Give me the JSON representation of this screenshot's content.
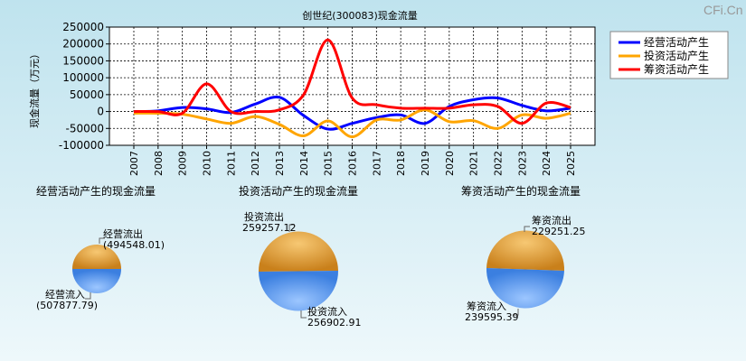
{
  "watermark": "CFi.Cn",
  "chart_data": [
    {
      "type": "line",
      "title": "创世纪(300083)现金流量",
      "ylabel": "现金流量（万元）",
      "xlabel": "",
      "x": [
        "2007",
        "2008",
        "2009",
        "2010",
        "2011",
        "2012",
        "2013",
        "2014",
        "2015",
        "2016",
        "2017",
        "2018",
        "2019",
        "2020",
        "2021",
        "2022",
        "2023",
        "2024",
        "2025"
      ],
      "ylim": [
        -100000,
        250000
      ],
      "yticks": [
        "250000",
        "200000",
        "150000",
        "100000",
        "50000",
        "0",
        "-50000",
        "-100000"
      ],
      "grid": true,
      "legend_position": "top-right",
      "series": [
        {
          "name": "经营活动产生",
          "color": "#0000ff",
          "values": [
            0,
            2000,
            12000,
            8000,
            -3000,
            22000,
            42000,
            -12000,
            -52000,
            -35000,
            -18000,
            -10000,
            -35000,
            15000,
            35000,
            40000,
            18000,
            2000,
            10000
          ]
        },
        {
          "name": "投资活动产生",
          "color": "#ffa500",
          "values": [
            -5000,
            -5000,
            -8000,
            -22000,
            -35000,
            -15000,
            -38000,
            -72000,
            -28000,
            -75000,
            -25000,
            -25000,
            5000,
            -30000,
            -27000,
            -50000,
            -10000,
            -20000,
            -5000
          ]
        },
        {
          "name": "筹资活动产生",
          "color": "#ff0000",
          "values": [
            0,
            0,
            -5000,
            82000,
            0,
            0,
            5000,
            50000,
            212000,
            40000,
            20000,
            10000,
            10000,
            10000,
            20000,
            15000,
            -35000,
            25000,
            12000
          ]
        }
      ]
    },
    {
      "type": "pie",
      "title": "经营活动产生的现金流量",
      "labels": [
        "经营流出",
        "经营流入"
      ],
      "values": [
        494548.01,
        507877.79
      ],
      "value_labels": [
        "(494548.01)",
        "(507877.79)"
      ],
      "colors": [
        "#e6a23c",
        "#5b9bf0"
      ]
    },
    {
      "type": "pie",
      "title": "投资活动产生的现金流量",
      "labels": [
        "投资流出",
        "投资流入"
      ],
      "values": [
        259257.12,
        256902.91
      ],
      "value_labels": [
        "259257.12",
        "256902.91"
      ],
      "colors": [
        "#e6a23c",
        "#5b9bf0"
      ]
    },
    {
      "type": "pie",
      "title": "筹资活动产生的现金流量",
      "labels": [
        "筹资流出",
        "筹资流入"
      ],
      "values": [
        229251.25,
        239595.39
      ],
      "value_labels": [
        "229251.25",
        "239595.39"
      ],
      "colors": [
        "#e6a23c",
        "#5b9bf0"
      ]
    }
  ]
}
